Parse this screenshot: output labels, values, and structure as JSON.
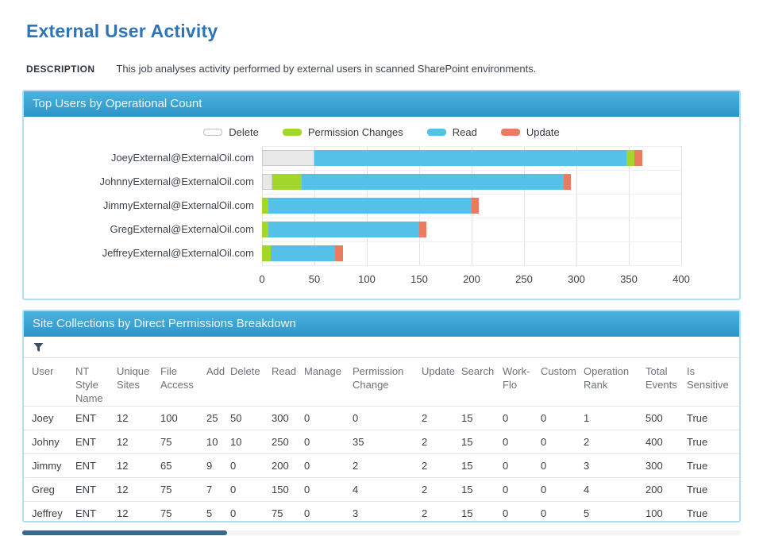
{
  "page": {
    "title": "External User Activity",
    "description_label": "DESCRIPTION",
    "description_text": "This job analyses activity performed by external users in scanned SharePoint environments."
  },
  "colors": {
    "title_blue": "#2e74b8",
    "panel_header_top": "#4ab3df",
    "panel_header_bottom": "#2e94c7",
    "panel_border": "#b2dfef",
    "delete_gray": "#e8e8e8",
    "permission_changes_green": "#a3d62b",
    "read_blue": "#55c1e9",
    "update_orange": "#ec7a5f",
    "scrollbar_thumb": "#39688f"
  },
  "chart_panel": {
    "title": "Top Users by Operational Count"
  },
  "chart_data": {
    "type": "bar",
    "orientation": "horizontal",
    "title": "Top Users by Operational Count",
    "categories": [
      "JoeyExternal@ExternalOil.com",
      "JohnnyExternal@ExternalOil.com",
      "JimmyExternal@ExternalOil.com",
      "GregExternal@ExternalOil.com",
      "JeffreyExternal@ExternalOil.com"
    ],
    "legend": [
      {
        "name": "Delete",
        "fill": "#e8e8e8",
        "stroke": "#c9c9c9",
        "swatch_fill": "#fbfbfb",
        "swatch_stroke": "#bfbfbf"
      },
      {
        "name": "Permission Changes",
        "fill": "#a3d62b"
      },
      {
        "name": "Read",
        "fill": "#55c1e9"
      },
      {
        "name": "Update",
        "fill": "#ec7a5f"
      }
    ],
    "legend_position": "top",
    "xlim": [
      0,
      400
    ],
    "xticks": [
      0,
      50,
      100,
      150,
      200,
      250,
      300,
      350,
      400
    ],
    "grid": true,
    "series": [
      {
        "name": "Delete",
        "values": [
          50,
          10,
          0,
          0,
          0
        ]
      },
      {
        "name": "Permission Changes",
        "values": [
          7,
          28,
          6,
          6,
          8
        ]
      },
      {
        "name": "Read",
        "values": [
          298,
          250,
          194,
          144,
          62
        ]
      },
      {
        "name": "Update",
        "values": [
          8,
          7,
          7,
          7,
          7
        ]
      }
    ],
    "bars": [
      [
        {
          "series": "Delete",
          "value": 50
        },
        {
          "series": "Read",
          "value": 298
        },
        {
          "series": "Permission Changes",
          "value": 7
        },
        {
          "series": "Update",
          "value": 8
        }
      ],
      [
        {
          "series": "Delete",
          "value": 10
        },
        {
          "series": "Permission Changes",
          "value": 28
        },
        {
          "series": "Read",
          "value": 250
        },
        {
          "series": "Update",
          "value": 7
        }
      ],
      [
        {
          "series": "Permission Changes",
          "value": 6
        },
        {
          "series": "Read",
          "value": 194
        },
        {
          "series": "Update",
          "value": 7
        }
      ],
      [
        {
          "series": "Permission Changes",
          "value": 6
        },
        {
          "series": "Read",
          "value": 144
        },
        {
          "series": "Update",
          "value": 7
        }
      ],
      [
        {
          "series": "Permission Changes",
          "value": 8
        },
        {
          "series": "Read",
          "value": 62
        },
        {
          "series": "Update",
          "value": 7
        }
      ]
    ]
  },
  "table_panel": {
    "title": "Site Collections by Direct Permissions Breakdown",
    "filter_icon": "funnel-icon",
    "columns": [
      "User",
      "NT Style Name",
      "Unique Sites",
      "File Access",
      "Add",
      "Delete",
      "Read",
      "Manage",
      "Permission Change",
      "Update",
      "Search",
      "Work-Flo",
      "Custom",
      "Operation Rank",
      "Total Events",
      "Is Sensitive"
    ],
    "rows": [
      [
        "Joey",
        "ENT",
        "12",
        "100",
        "25",
        "50",
        "300",
        "0",
        "0",
        "2",
        "15",
        "0",
        "0",
        "1",
        "500",
        "True"
      ],
      [
        "Johny",
        "ENT",
        "12",
        "75",
        "10",
        "10",
        "250",
        "0",
        "35",
        "2",
        "15",
        "0",
        "0",
        "2",
        "400",
        "True"
      ],
      [
        "Jimmy",
        "ENT",
        "12",
        "65",
        "9",
        "0",
        "200",
        "0",
        "2",
        "2",
        "15",
        "0",
        "0",
        "3",
        "300",
        "True"
      ],
      [
        "Greg",
        "ENT",
        "12",
        "75",
        "7",
        "0",
        "150",
        "0",
        "4",
        "2",
        "15",
        "0",
        "0",
        "4",
        "200",
        "True"
      ],
      [
        "Jeffrey",
        "ENT",
        "12",
        "75",
        "5",
        "0",
        "75",
        "0",
        "3",
        "2",
        "15",
        "0",
        "0",
        "5",
        "100",
        "True"
      ]
    ]
  }
}
